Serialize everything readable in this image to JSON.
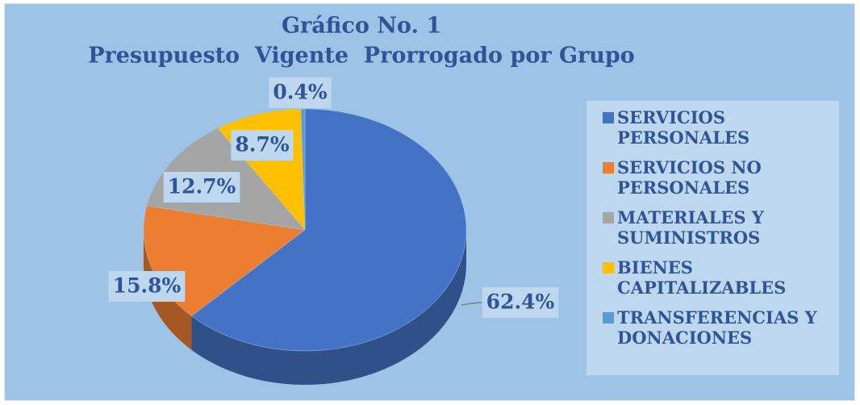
{
  "chart_data": {
    "type": "pie",
    "title": "Gráfico No. 1",
    "subtitle": "Presupuesto  Vigente  Prorrogado por Grupo",
    "categories": [
      "SERVICIOS PERSONALES",
      "SERVICIOS NO PERSONALES",
      "MATERIALES Y SUMINISTROS",
      "BIENES CAPITALIZABLES",
      "TRANSFERENCIAS Y DONACIONES"
    ],
    "values": [
      62.4,
      15.8,
      12.7,
      8.7,
      0.4
    ],
    "value_labels": [
      "62.4%",
      "15.8%",
      "12.7%",
      "8.7%",
      "0.4%"
    ],
    "colors": [
      "#4472c4",
      "#ed7d31",
      "#a5a5a5",
      "#ffc000",
      "#5b9bd5"
    ],
    "legend": "right"
  }
}
